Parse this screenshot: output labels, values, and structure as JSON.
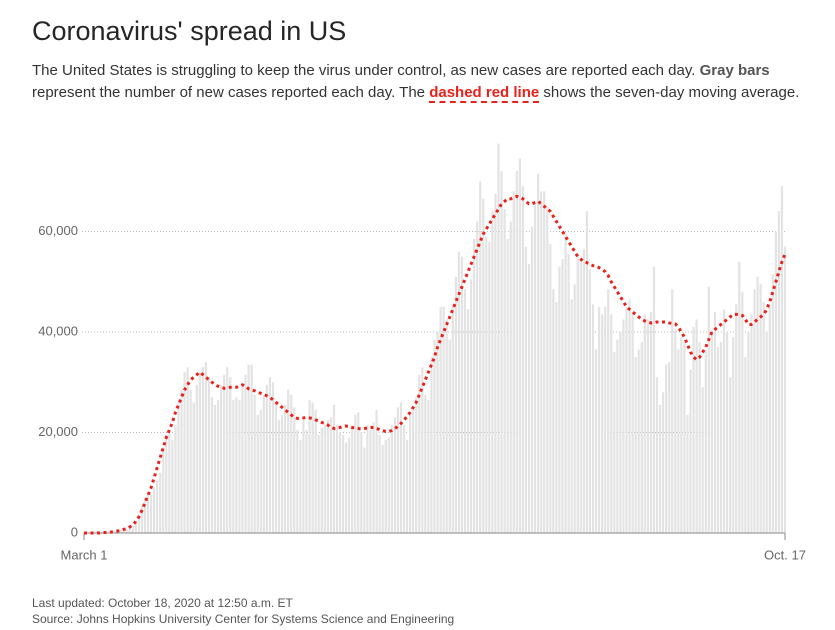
{
  "chart_data": {
    "type": "bar",
    "title": "Coronavirus' spread in US",
    "subtitle": [
      "The United States is struggling to keep the virus under control, as new cases are reported each day. ",
      "Gray bars",
      " represent the number of new cases reported each day. The ",
      "dashed red line",
      " shows the seven-day moving average."
    ],
    "updated": "Last updated: October 18, 2020 at 12:50 a.m. ET",
    "source": "Source: Johns Hopkins University Center for Systems Science and Engineering",
    "categories": [
      "March 1",
      null,
      null,
      null,
      null,
      null,
      null,
      null,
      null,
      null,
      null,
      null,
      null,
      null,
      null,
      null,
      null,
      null,
      null,
      null,
      null,
      null,
      null,
      null,
      null,
      null,
      null,
      null,
      null,
      null,
      null,
      null,
      null,
      null,
      null,
      null,
      null,
      null,
      null,
      null,
      null,
      null,
      null,
      null,
      null,
      null,
      null,
      null,
      null,
      null,
      null,
      null,
      null,
      null,
      null,
      null,
      null,
      null,
      null,
      null,
      null,
      null,
      null,
      null,
      null,
      null,
      null,
      null,
      null,
      null,
      null,
      null,
      null,
      null,
      null,
      null,
      null,
      null,
      null,
      null,
      null,
      null,
      null,
      null,
      null,
      null,
      null,
      null,
      null,
      null,
      null,
      null,
      null,
      null,
      null,
      null,
      null,
      null,
      null,
      null,
      null,
      null,
      null,
      null,
      null,
      null,
      null,
      null,
      null,
      null,
      null,
      null,
      null,
      null,
      null,
      null,
      null,
      null,
      null,
      null,
      null,
      null,
      null,
      null,
      null,
      null,
      null,
      null,
      null,
      null,
      null,
      null,
      null,
      null,
      null,
      null,
      null,
      null,
      null,
      null,
      null,
      null,
      null,
      null,
      null,
      null,
      null,
      null,
      null,
      null,
      null,
      null,
      null,
      null,
      null,
      null,
      null,
      null,
      null,
      null,
      null,
      null,
      null,
      null,
      null,
      null,
      null,
      null,
      null,
      null,
      null,
      null,
      null,
      null,
      null,
      null,
      null,
      null,
      null,
      null,
      null,
      null,
      null,
      null,
      null,
      null,
      null,
      null,
      null,
      null,
      null,
      null,
      null,
      null,
      null,
      null,
      null,
      null,
      null,
      null,
      null,
      null,
      null,
      null,
      null,
      null,
      null,
      null,
      null,
      null,
      null,
      null,
      null,
      null,
      null,
      null,
      null,
      null,
      null,
      null,
      null,
      null,
      null,
      null,
      null,
      null,
      null,
      null,
      null,
      null,
      "Oct. 17"
    ],
    "series": [
      {
        "type": "bar",
        "color": "#e3e3e3",
        "values": [
          0,
          0,
          0,
          0,
          0,
          0,
          100,
          100,
          100,
          200,
          300,
          400,
          600,
          700,
          800,
          1000,
          1500,
          2400,
          3600,
          5400,
          6900,
          7900,
          7700,
          9000,
          10500,
          12000,
          17000,
          19500,
          19800,
          18500,
          21500,
          26000,
          28500,
          32000,
          33000,
          28500,
          26000,
          29500,
          32000,
          33000,
          34000,
          31000,
          27000,
          25500,
          26500,
          29500,
          31500,
          33000,
          31000,
          26500,
          27000,
          26500,
          29500,
          31500,
          33500,
          33500,
          27500,
          23500,
          24500,
          27500,
          29500,
          31000,
          30000,
          26000,
          22500,
          23500,
          25500,
          28500,
          27500,
          25000,
          20500,
          18500,
          22500,
          20500,
          26500,
          26000,
          24500,
          19500,
          21000,
          21500,
          22500,
          23000,
          25500,
          21500,
          20000,
          19500,
          18000,
          19000,
          21000,
          23500,
          24000,
          20000,
          17000,
          21500,
          20500,
          22000,
          24500,
          19500,
          17500,
          18500,
          19000,
          21500,
          23000,
          25000,
          26000,
          21500,
          18500,
          23500,
          24500,
          27000,
          31500,
          33000,
          27500,
          26500,
          35000,
          38500,
          40000,
          45000,
          45000,
          42500,
          38500,
          45000,
          51000,
          56000,
          55000,
          48500,
          44500,
          50500,
          58500,
          62000,
          70000,
          66500,
          59000,
          58000,
          64000,
          67500,
          77500,
          72000,
          64500,
          58500,
          62000,
          68000,
          72000,
          74500,
          69000,
          57000,
          53500,
          61000,
          65500,
          71500,
          68000,
          68000,
          65000,
          57500,
          48500,
          46000,
          53000,
          54500,
          59500,
          55500,
          46500,
          49500,
          55500,
          54500,
          56500,
          64000,
          52500,
          45500,
          36500,
          45000,
          43500,
          45000,
          48500,
          43500,
          36000,
          38500,
          40000,
          42500,
          45000,
          46500,
          44000,
          35000,
          36500,
          38000,
          43500,
          42500,
          44000,
          53000,
          31000,
          25500,
          28000,
          33500,
          34000,
          48500,
          40500,
          36500,
          39000,
          38000,
          23500,
          32500,
          41000,
          42500,
          38000,
          29000,
          36500,
          49000,
          40500,
          44000,
          37000,
          38000,
          44500,
          40000,
          31000,
          39000,
          45500,
          54000,
          48000,
          35000,
          40000,
          43500,
          48500,
          51000,
          49500,
          46000,
          40000,
          45000,
          51500,
          60000,
          64000,
          69000,
          57000
        ]
      },
      {
        "type": "line",
        "color": "#e8221b",
        "dashed": true,
        "values": [
          0,
          0,
          0,
          0,
          0,
          0,
          100,
          100,
          100,
          200,
          300,
          400,
          500,
          700,
          900,
          1200,
          1600,
          2300,
          3200,
          4500,
          6000,
          7500,
          9000,
          11000,
          13000,
          15000,
          17000,
          19000,
          20500,
          22000,
          24000,
          25500,
          27000,
          28500,
          29500,
          30500,
          31000,
          31500,
          32000,
          31500,
          31000,
          30500,
          30000,
          29500,
          29200,
          29000,
          28800,
          28800,
          29000,
          29000,
          29000,
          29200,
          29500,
          29200,
          28700,
          28500,
          28300,
          28000,
          27800,
          27600,
          27300,
          27000,
          26500,
          26000,
          25500,
          25000,
          24500,
          24000,
          23500,
          23000,
          22800,
          22800,
          22900,
          23000,
          22900,
          22800,
          22500,
          22300,
          22000,
          21800,
          21500,
          21000,
          20800,
          20800,
          21000,
          21200,
          21300,
          21200,
          21000,
          20900,
          20800,
          20700,
          20800,
          20900,
          21000,
          21000,
          20800,
          20600,
          20400,
          20200,
          20200,
          20400,
          20800,
          21200,
          21800,
          22500,
          23200,
          24000,
          25000,
          26000,
          27500,
          29000,
          30500,
          32000,
          33500,
          35000,
          37000,
          38500,
          40000,
          41500,
          43000,
          44500,
          46000,
          47500,
          49000,
          50500,
          52000,
          53500,
          55000,
          56500,
          58000,
          59500,
          60500,
          61500,
          62500,
          63500,
          64500,
          65500,
          66000,
          66500,
          66500,
          66800,
          67000,
          66800,
          66500,
          66000,
          65500,
          65500,
          65800,
          66000,
          65500,
          65000,
          64500,
          64000,
          63000,
          62000,
          61000,
          60000,
          59000,
          58000,
          57000,
          56000,
          55000,
          54500,
          54000,
          53800,
          53500,
          53200,
          53000,
          52800,
          52500,
          52000,
          51200,
          50000,
          49000,
          48000,
          47000,
          46000,
          45000,
          44500,
          44000,
          43500,
          43000,
          42500,
          42200,
          42000,
          41800,
          41800,
          42000,
          42000,
          42000,
          42000,
          41800,
          41700,
          41600,
          41000,
          40000,
          39000,
          37500,
          36000,
          35000,
          34500,
          35000,
          36000,
          37000,
          38500,
          40000,
          40500,
          41000,
          41500,
          42000,
          42500,
          43000,
          43500,
          43500,
          43500,
          43300,
          42500,
          41500,
          41500,
          42000,
          42500,
          43000,
          43500,
          44500,
          46000,
          48000,
          50000,
          52000,
          54000,
          55500
        ]
      }
    ],
    "ylim": [
      0,
      80000
    ],
    "yticks": [
      0,
      {
        "value": 20000,
        "label": "20,000"
      },
      {
        "value": 40000,
        "label": "40,000"
      },
      {
        "value": 60000,
        "label": "60,000"
      }
    ],
    "grid": true
  }
}
